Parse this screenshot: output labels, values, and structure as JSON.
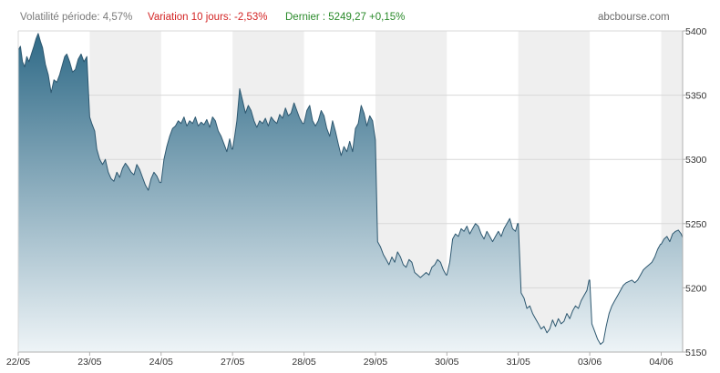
{
  "header": {
    "volatility": "Volatilité période: 4,57%",
    "variation": "Variation 10 jours: -2,53%",
    "last": "Dernier : 5249,27   +0,15%",
    "site": "abcbourse.com"
  },
  "colors": {
    "line": "#2e5870",
    "fill_top": "#2f6a87",
    "fill_bottom": "#eef4f7",
    "band_shade": "#efefef",
    "grid": "#d8d8d8",
    "axis": "#b0b0b0"
  },
  "chart_data": {
    "type": "area",
    "title": "",
    "xlabel": "",
    "ylabel": "",
    "ylim": [
      5150,
      5400
    ],
    "yticks": [
      5150,
      5200,
      5250,
      5300,
      5350,
      5400
    ],
    "categories": [
      "22/05",
      "23/05",
      "24/05",
      "27/05",
      "28/05",
      "29/05",
      "30/05",
      "31/05",
      "03/06",
      "04/06"
    ],
    "shaded_days": [
      1,
      3,
      5,
      7,
      9
    ],
    "grid": true,
    "legend": "none",
    "series": [
      {
        "name": "",
        "x": [
          0.0,
          0.03,
          0.06,
          0.09,
          0.12,
          0.15,
          0.19,
          0.22,
          0.25,
          0.28,
          0.31,
          0.34,
          0.38,
          0.42,
          0.46,
          0.5,
          0.54,
          0.58,
          0.62,
          0.65,
          0.68,
          0.72,
          0.76,
          0.8,
          0.84,
          0.88,
          0.92,
          0.96,
          1.0,
          1.0,
          1.03,
          1.07,
          1.1,
          1.14,
          1.18,
          1.22,
          1.26,
          1.3,
          1.34,
          1.38,
          1.42,
          1.46,
          1.5,
          1.54,
          1.58,
          1.62,
          1.66,
          1.7,
          1.74,
          1.78,
          1.82,
          1.86,
          1.9,
          1.94,
          1.98,
          2.0,
          2.04,
          2.08,
          2.12,
          2.16,
          2.2,
          2.24,
          2.28,
          2.32,
          2.36,
          2.4,
          2.44,
          2.48,
          2.52,
          2.56,
          2.6,
          2.64,
          2.68,
          2.72,
          2.76,
          2.8,
          2.84,
          2.88,
          2.92,
          2.96,
          2.99,
          3.0,
          3.03,
          3.06,
          3.1,
          3.14,
          3.18,
          3.22,
          3.26,
          3.3,
          3.34,
          3.38,
          3.42,
          3.46,
          3.5,
          3.54,
          3.58,
          3.62,
          3.66,
          3.7,
          3.74,
          3.78,
          3.82,
          3.86,
          3.9,
          3.94,
          3.98,
          4.0,
          4.04,
          4.08,
          4.12,
          4.16,
          4.2,
          4.24,
          4.28,
          4.32,
          4.36,
          4.4,
          4.44,
          4.48,
          4.52,
          4.56,
          4.6,
          4.64,
          4.68,
          4.72,
          4.76,
          4.8,
          4.84,
          4.88,
          4.92,
          4.96,
          5.0,
          5.0,
          5.03,
          5.07,
          5.11,
          5.15,
          5.19,
          5.23,
          5.27,
          5.31,
          5.35,
          5.39,
          5.43,
          5.47,
          5.51,
          5.55,
          5.59,
          5.63,
          5.67,
          5.71,
          5.75,
          5.79,
          5.83,
          5.87,
          5.91,
          5.95,
          5.99,
          6.0,
          6.04,
          6.08,
          6.12,
          6.16,
          6.2,
          6.24,
          6.28,
          6.32,
          6.36,
          6.4,
          6.44,
          6.48,
          6.52,
          6.56,
          6.6,
          6.64,
          6.68,
          6.72,
          6.76,
          6.8,
          6.84,
          6.88,
          6.92,
          6.96,
          6.99,
          7.0,
          7.04,
          7.08,
          7.12,
          7.16,
          7.2,
          7.24,
          7.28,
          7.32,
          7.36,
          7.4,
          7.44,
          7.48,
          7.52,
          7.56,
          7.6,
          7.64,
          7.68,
          7.72,
          7.76,
          7.8,
          7.84,
          7.88,
          7.92,
          7.96,
          7.99,
          8.0,
          8.03,
          8.07,
          8.11,
          8.15,
          8.19,
          8.23,
          8.27,
          8.31,
          8.35,
          8.39,
          8.43,
          8.47,
          8.51,
          8.55,
          8.59,
          8.63,
          8.67,
          8.71,
          8.75,
          8.79,
          8.83,
          8.87,
          8.91,
          8.95,
          8.99,
          9.0,
          9.04,
          9.08,
          9.12,
          9.16,
          9.2,
          9.24,
          9.28,
          9.32,
          9.36,
          9.4,
          9.44,
          9.48,
          9.52,
          9.56,
          9.6,
          9.64,
          9.68,
          9.72,
          9.76,
          9.8,
          9.84,
          9.88,
          9.92
        ],
        "y": [
          5385,
          5388,
          5376,
          5372,
          5380,
          5376,
          5383,
          5388,
          5394,
          5398,
          5392,
          5387,
          5374,
          5366,
          5352,
          5362,
          5360,
          5366,
          5374,
          5380,
          5382,
          5376,
          5368,
          5370,
          5378,
          5382,
          5376,
          5380,
          5333,
          5333,
          5328,
          5322,
          5308,
          5300,
          5296,
          5300,
          5290,
          5285,
          5283,
          5290,
          5286,
          5293,
          5297,
          5294,
          5290,
          5288,
          5296,
          5292,
          5286,
          5280,
          5276,
          5285,
          5290,
          5287,
          5282,
          5282,
          5300,
          5310,
          5318,
          5324,
          5326,
          5330,
          5328,
          5333,
          5326,
          5330,
          5328,
          5333,
          5326,
          5329,
          5327,
          5331,
          5325,
          5333,
          5330,
          5322,
          5318,
          5312,
          5306,
          5316,
          5308,
          5308,
          5318,
          5330,
          5355,
          5346,
          5336,
          5342,
          5338,
          5330,
          5325,
          5330,
          5328,
          5332,
          5326,
          5333,
          5330,
          5328,
          5335,
          5332,
          5340,
          5334,
          5336,
          5344,
          5338,
          5332,
          5328,
          5328,
          5338,
          5342,
          5330,
          5326,
          5330,
          5338,
          5334,
          5324,
          5318,
          5330,
          5322,
          5312,
          5303,
          5310,
          5306,
          5314,
          5306,
          5324,
          5328,
          5342,
          5336,
          5326,
          5334,
          5330,
          5315,
          5315,
          5236,
          5232,
          5226,
          5222,
          5218,
          5224,
          5220,
          5228,
          5224,
          5218,
          5216,
          5222,
          5220,
          5212,
          5210,
          5208,
          5210,
          5212,
          5210,
          5216,
          5218,
          5222,
          5220,
          5214,
          5210,
          5210,
          5220,
          5238,
          5242,
          5240,
          5246,
          5244,
          5248,
          5242,
          5246,
          5250,
          5248,
          5242,
          5238,
          5244,
          5240,
          5236,
          5240,
          5244,
          5240,
          5246,
          5250,
          5254,
          5246,
          5244,
          5250,
          5250,
          5196,
          5192,
          5184,
          5186,
          5180,
          5176,
          5172,
          5168,
          5170,
          5165,
          5168,
          5175,
          5170,
          5176,
          5172,
          5174,
          5180,
          5176,
          5182,
          5186,
          5184,
          5190,
          5194,
          5198,
          5206,
          5206,
          5172,
          5166,
          5160,
          5156,
          5158,
          5170,
          5180,
          5186,
          5190,
          5194,
          5198,
          5202,
          5204,
          5205,
          5206,
          5204,
          5206,
          5210,
          5214,
          5216,
          5218,
          5220,
          5224,
          5230,
          5234,
          5234,
          5238,
          5240,
          5236,
          5242,
          5244,
          5245,
          5242,
          5236,
          5230,
          5192,
          5210,
          5218,
          5224,
          5230,
          5238,
          5244,
          5246,
          5250,
          5249,
          5251,
          5248,
          5250,
          5249
        ]
      }
    ]
  }
}
